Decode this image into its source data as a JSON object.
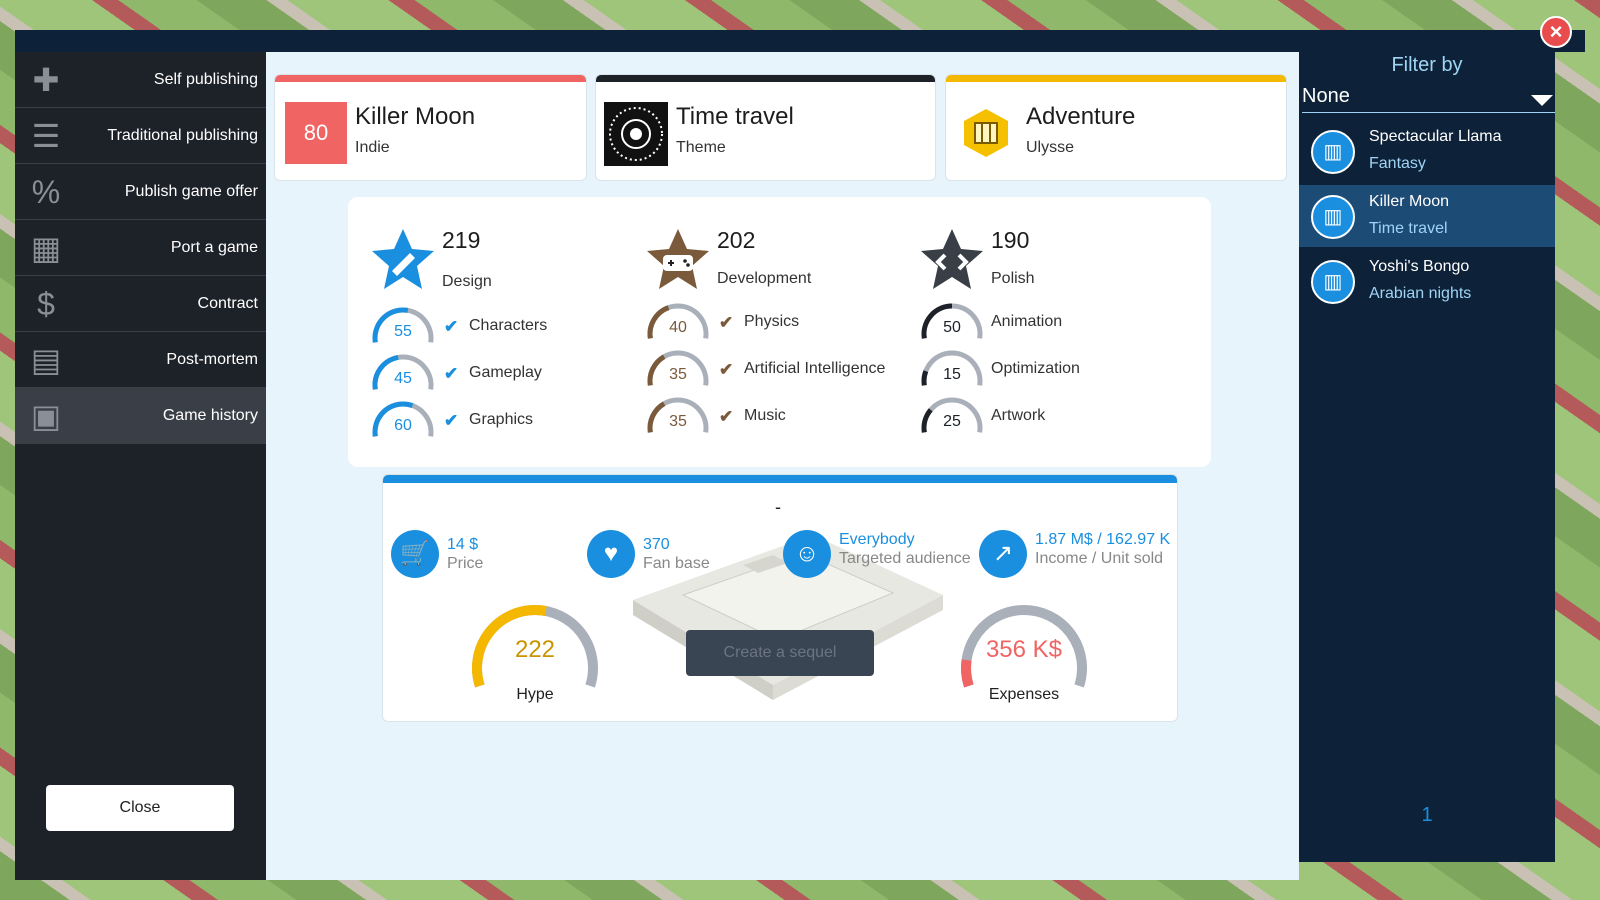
{
  "sidebar": {
    "items": [
      {
        "label": "Self publishing",
        "icon": "plus-icon"
      },
      {
        "label": "Traditional publishing",
        "icon": "coins-icon"
      },
      {
        "label": "Publish game offer",
        "icon": "percent-bubble-icon"
      },
      {
        "label": "Port a game",
        "icon": "devices-icon"
      },
      {
        "label": "Contract",
        "icon": "dollar-hand-icon"
      },
      {
        "label": "Post-mortem",
        "icon": "clipboard-icon"
      },
      {
        "label": "Game history",
        "icon": "monitor-icon"
      }
    ],
    "active_index": 6,
    "close_label": "Close"
  },
  "header": {
    "game": {
      "score": "80",
      "title": "Killer Moon",
      "subtitle": "Indie",
      "accent": "#f06464"
    },
    "theme": {
      "title": "Time travel",
      "subtitle": "Theme",
      "accent": "#1d2128"
    },
    "genre": {
      "title": "Adventure",
      "subtitle": "Ulysse",
      "accent": "#f5b800"
    }
  },
  "stats": {
    "design": {
      "value": "219",
      "label": "Design",
      "color": "#1a8fdf",
      "items": [
        {
          "value": "55",
          "label": "Characters",
          "fill": 0.55
        },
        {
          "value": "45",
          "label": "Gameplay",
          "fill": 0.45
        },
        {
          "value": "60",
          "label": "Graphics",
          "fill": 0.6
        }
      ]
    },
    "development": {
      "value": "202",
      "label": "Development",
      "color": "#7a5a3a",
      "items": [
        {
          "value": "40",
          "label": "Physics",
          "fill": 0.4
        },
        {
          "value": "35",
          "label": "Artificial Intelligence",
          "fill": 0.35
        },
        {
          "value": "35",
          "label": "Music",
          "fill": 0.35
        }
      ]
    },
    "polish": {
      "value": "190",
      "label": "Polish",
      "color": "#1d2128",
      "items": [
        {
          "value": "50",
          "label": "Animation",
          "fill": 0.5
        },
        {
          "value": "15",
          "label": "Optimization",
          "fill": 0.15
        },
        {
          "value": "25",
          "label": "Artwork",
          "fill": 0.25
        }
      ]
    }
  },
  "sales": {
    "platform": "-",
    "price": {
      "value": "14 $",
      "label": "Price"
    },
    "fanbase": {
      "value": "370",
      "label": "Fan base"
    },
    "audience": {
      "value": "Everybody",
      "label": "Targeted audience"
    },
    "income": {
      "value": "1.87 M$ / 162.97 K",
      "label": "Income / Unit sold"
    },
    "hype": {
      "value": "222",
      "label": "Hype",
      "fill": 0.55,
      "color": "#f5b800"
    },
    "expenses": {
      "value": "356 K$",
      "label": "Expenses",
      "fill": 0.12,
      "color": "#f06464"
    },
    "sequel_label": "Create a sequel"
  },
  "filter": {
    "title": "Filter by",
    "selected": "None",
    "games": [
      {
        "name": "Spectacular Llama",
        "theme": "Fantasy"
      },
      {
        "name": "Killer Moon",
        "theme": "Time travel"
      },
      {
        "name": "Yoshi's Bongo",
        "theme": "Arabian nights"
      }
    ],
    "selected_index": 1,
    "page": "1"
  }
}
